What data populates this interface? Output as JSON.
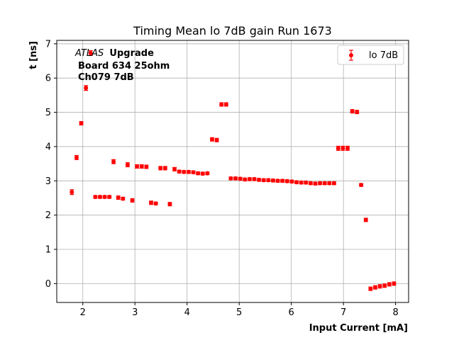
{
  "chart_data": {
    "type": "scatter",
    "title": "Timing Mean lo 7dB gain Run 1673",
    "xlabel": "Input Current [mA]",
    "ylabel": "t [ns]",
    "xlim": [
      1.5,
      8.25
    ],
    "ylim": [
      -0.55,
      7.1
    ],
    "xticks": [
      2,
      3,
      4,
      5,
      6,
      7,
      8
    ],
    "yticks": [
      0,
      1,
      2,
      3,
      4,
      5,
      6,
      7
    ],
    "grid": true,
    "legend_position": "upper right",
    "annotation": {
      "atlas": "ATLAS",
      "upgrade": "Upgrade",
      "line2": "Board 634 25ohm",
      "line3": "Ch079 7dB"
    },
    "series": [
      {
        "name": "lo 7dB",
        "color": "#ff0000",
        "marker": "circle",
        "errorbars": true,
        "points": [
          [
            1.79,
            2.67
          ],
          [
            1.88,
            3.68
          ],
          [
            1.97,
            4.68
          ],
          [
            2.06,
            5.71
          ],
          [
            2.15,
            6.73
          ],
          [
            2.24,
            2.53
          ],
          [
            2.33,
            2.53
          ],
          [
            2.42,
            2.53
          ],
          [
            2.51,
            2.53
          ],
          [
            2.59,
            3.56
          ],
          [
            2.68,
            2.51
          ],
          [
            2.77,
            2.48
          ],
          [
            2.86,
            3.47
          ],
          [
            2.95,
            2.43
          ],
          [
            3.04,
            3.42
          ],
          [
            3.13,
            3.42
          ],
          [
            3.22,
            3.41
          ],
          [
            3.31,
            2.36
          ],
          [
            3.4,
            2.34
          ],
          [
            3.49,
            3.37
          ],
          [
            3.58,
            3.37
          ],
          [
            3.67,
            2.32
          ],
          [
            3.76,
            3.34
          ],
          [
            3.85,
            3.27
          ],
          [
            3.94,
            3.26
          ],
          [
            4.03,
            3.26
          ],
          [
            4.12,
            3.25
          ],
          [
            4.21,
            3.22
          ],
          [
            4.3,
            3.21
          ],
          [
            4.39,
            3.22
          ],
          [
            4.48,
            4.21
          ],
          [
            4.57,
            4.19
          ],
          [
            4.66,
            5.23
          ],
          [
            4.75,
            5.23
          ],
          [
            4.84,
            3.07
          ],
          [
            4.93,
            3.07
          ],
          [
            5.02,
            3.06
          ],
          [
            5.11,
            3.04
          ],
          [
            5.2,
            3.05
          ],
          [
            5.29,
            3.05
          ],
          [
            5.38,
            3.03
          ],
          [
            5.47,
            3.02
          ],
          [
            5.56,
            3.02
          ],
          [
            5.65,
            3.01
          ],
          [
            5.74,
            3.0
          ],
          [
            5.83,
            3.0
          ],
          [
            5.92,
            2.99
          ],
          [
            6.01,
            2.98
          ],
          [
            6.1,
            2.96
          ],
          [
            6.19,
            2.95
          ],
          [
            6.28,
            2.95
          ],
          [
            6.37,
            2.93
          ],
          [
            6.46,
            2.92
          ],
          [
            6.55,
            2.93
          ],
          [
            6.64,
            2.93
          ],
          [
            6.73,
            2.93
          ],
          [
            6.82,
            2.93
          ],
          [
            6.9,
            3.95
          ],
          [
            6.99,
            3.95
          ],
          [
            7.08,
            3.95
          ],
          [
            7.17,
            5.03
          ],
          [
            7.26,
            5.01
          ],
          [
            7.34,
            2.88
          ],
          [
            7.43,
            1.86
          ],
          [
            7.52,
            -0.15
          ],
          [
            7.61,
            -0.11
          ],
          [
            7.7,
            -0.08
          ],
          [
            7.79,
            -0.06
          ],
          [
            7.88,
            -0.02
          ],
          [
            7.97,
            0.0
          ]
        ],
        "yerr": [
          0.07,
          0.06,
          0.05,
          0.07,
          0.07,
          0.04,
          0.04,
          0.04,
          0.04,
          0.06,
          0.05,
          0.04,
          0.06,
          0.05,
          0.05,
          0.05,
          0.05,
          0.05,
          0.04,
          0.05,
          0.05,
          0.05,
          0.05,
          0.04,
          0.04,
          0.04,
          0.04,
          0.04,
          0.04,
          0.04,
          0.05,
          0.05,
          0.05,
          0.05,
          0.04,
          0.04,
          0.04,
          0.04,
          0.04,
          0.04,
          0.04,
          0.04,
          0.04,
          0.04,
          0.04,
          0.04,
          0.04,
          0.04,
          0.04,
          0.04,
          0.04,
          0.04,
          0.04,
          0.04,
          0.04,
          0.04,
          0.04,
          0.06,
          0.06,
          0.06,
          0.05,
          0.05,
          0.04,
          0.05,
          0.05,
          0.05,
          0.05,
          0.05,
          0.05,
          0.05
        ]
      }
    ]
  }
}
